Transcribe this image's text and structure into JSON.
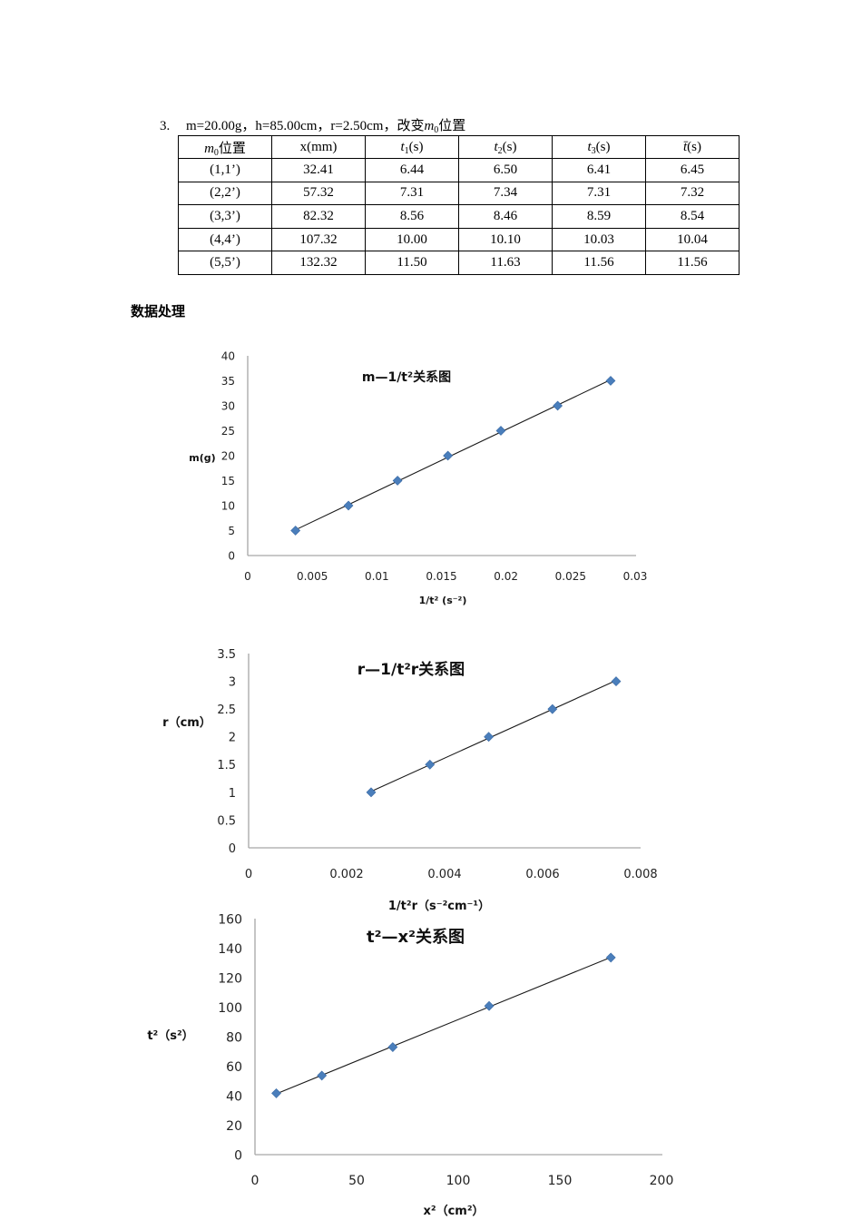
{
  "section": {
    "number": "3.",
    "caption_prefix": "m=20.00g，h=85.00cm，r=2.50cm，改变",
    "caption_var": "m",
    "caption_var_sub": "0",
    "caption_suffix": "位置"
  },
  "table": {
    "headers": [
      {
        "main": "m",
        "sub": "0",
        "tail": "位置",
        "italic": true
      },
      {
        "main": "x(mm)",
        "sub": "",
        "tail": "",
        "italic": false
      },
      {
        "main": "t",
        "sub": "1",
        "tail": "(s)",
        "italic": true
      },
      {
        "main": "t",
        "sub": "2",
        "tail": "(s)",
        "italic": true
      },
      {
        "main": "t",
        "sub": "3",
        "tail": "(s)",
        "italic": true
      },
      {
        "main": "t̄",
        "sub": "",
        "tail": "(s)",
        "italic": true
      }
    ],
    "rows": [
      [
        "(1,1’)",
        "32.41",
        "6.44",
        "6.50",
        "6.41",
        "6.45"
      ],
      [
        "(2,2’)",
        "57.32",
        "7.31",
        "7.34",
        "7.31",
        "7.32"
      ],
      [
        "(3,3’)",
        "82.32",
        "8.56",
        "8.46",
        "8.59",
        "8.54"
      ],
      [
        "(4,4’)",
        "107.32",
        "10.00",
        "10.10",
        "10.03",
        "10.04"
      ],
      [
        "(5,5’)",
        "132.32",
        "11.50",
        "11.63",
        "11.56",
        "11.56"
      ]
    ]
  },
  "heading": "数据处理",
  "colors": {
    "marker": "#4a7ebb",
    "marker_edge": "#3a6aa5",
    "axis": "#a6a6a6",
    "fit_line": "#1a1a1a"
  },
  "chart_data": [
    {
      "type": "scatter",
      "title": "m—1/t²关系图",
      "xlabel": "1/t² (s⁻²)",
      "ylabel": "m(g)",
      "xlim": [
        0,
        0.03
      ],
      "ylim": [
        0,
        40
      ],
      "xticks": [
        "0",
        "0.005",
        "0.01",
        "0.015",
        "0.02",
        "0.025",
        "0.03"
      ],
      "yticks": [
        "0",
        "5",
        "10",
        "15",
        "20",
        "25",
        "30",
        "35",
        "40"
      ],
      "x": [
        0.0037,
        0.0078,
        0.0116,
        0.0155,
        0.0196,
        0.024,
        0.0281
      ],
      "y": [
        5,
        10,
        15,
        20,
        25,
        30,
        35
      ],
      "trendline": true,
      "grid": false,
      "legend": false
    },
    {
      "type": "scatter",
      "title": "r—1/t²r关系图",
      "xlabel": "1/t²r（s⁻²cm⁻¹）",
      "ylabel": "r（cm）",
      "xlim": [
        0,
        0.008
      ],
      "ylim": [
        0,
        3.5
      ],
      "xticks": [
        "0",
        "0.002",
        "0.004",
        "0.006",
        "0.008"
      ],
      "yticks": [
        "0",
        "0.5",
        "1",
        "1.5",
        "2",
        "2.5",
        "3",
        "3.5"
      ],
      "x": [
        0.0025,
        0.0037,
        0.0049,
        0.0062,
        0.0075
      ],
      "y": [
        1,
        1.5,
        2,
        2.5,
        3
      ],
      "trendline": true,
      "grid": false,
      "legend": false
    },
    {
      "type": "scatter",
      "title": "t²—x²关系图",
      "xlabel": "x²（cm²）",
      "ylabel": "t²（s²）",
      "xlim": [
        0,
        200
      ],
      "ylim": [
        0,
        160
      ],
      "xticks": [
        "0",
        "50",
        "100",
        "150",
        "200"
      ],
      "yticks": [
        "0",
        "20",
        "40",
        "60",
        "80",
        "100",
        "120",
        "140",
        "160"
      ],
      "x": [
        10.5,
        32.9,
        67.8,
        115.2,
        175.1
      ],
      "y": [
        41.6,
        53.6,
        72.9,
        100.8,
        133.6
      ],
      "trendline": true,
      "grid": false,
      "legend": false
    }
  ]
}
